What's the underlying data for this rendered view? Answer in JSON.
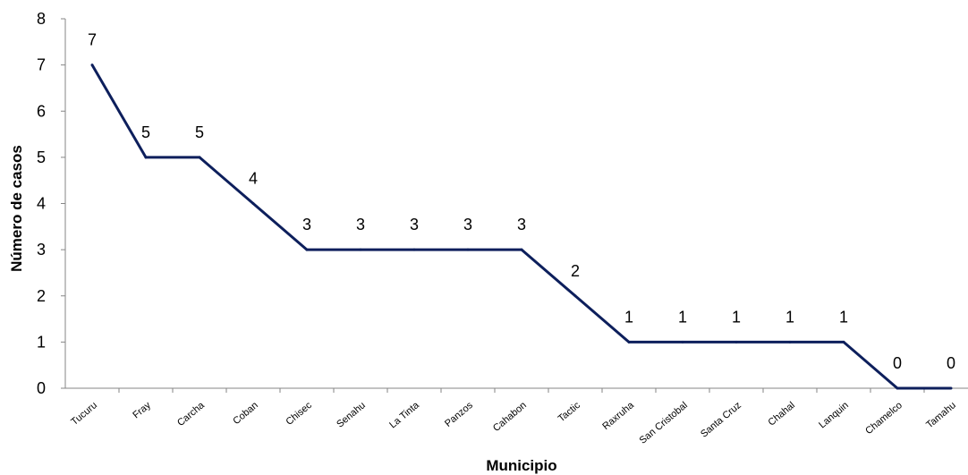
{
  "chart_data": {
    "type": "line",
    "title": "",
    "xlabel": "Municipio",
    "ylabel": "Número de casos",
    "categories": [
      "Tucuru",
      "Fray",
      "Carcha",
      "Coban",
      "Chisec",
      "Senahu",
      "La Tinta",
      "Panzos",
      "Cahabon",
      "Tactic",
      "Raxruha",
      "San Cristobal",
      "Santa Cruz",
      "Chahal",
      "Lanquin",
      "Chamelco",
      "Tamahu"
    ],
    "series": [
      {
        "values": [
          7,
          5,
          5,
          4,
          3,
          3,
          3,
          3,
          3,
          2,
          1,
          1,
          1,
          1,
          1,
          0,
          0
        ],
        "color": "#0d1f5c"
      }
    ],
    "ylim": [
      0,
      8
    ],
    "yticks": [
      0,
      1,
      2,
      3,
      4,
      5,
      6,
      7,
      8
    ],
    "grid": false,
    "legend": "none",
    "data_labels": true
  }
}
